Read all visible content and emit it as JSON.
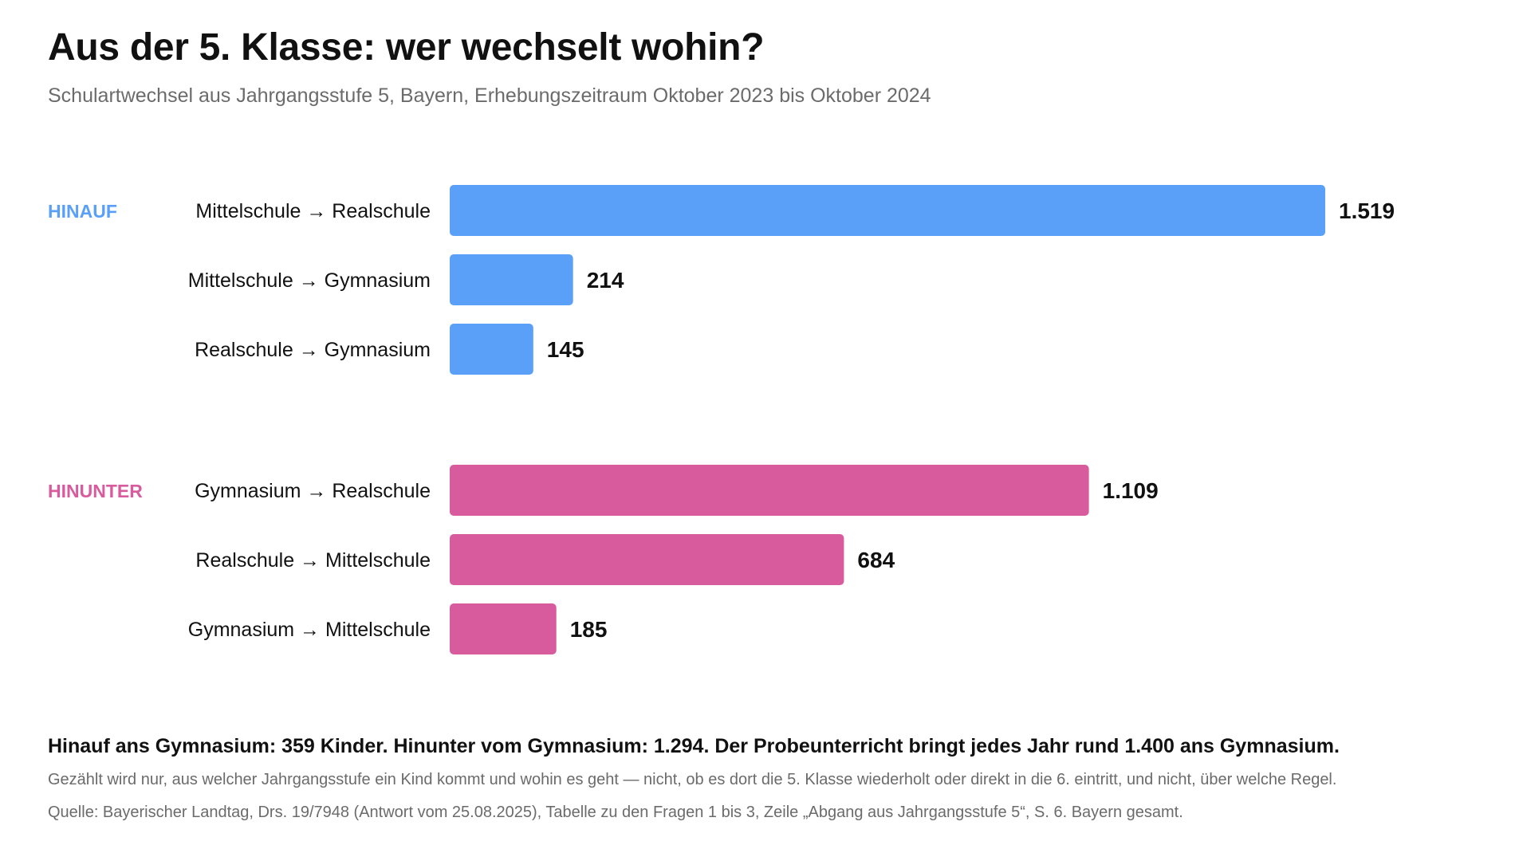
{
  "chart_data": {
    "type": "bar",
    "orientation": "horizontal",
    "title": "Aus der 5. Klasse: wer wechselt wohin?",
    "subtitle": "Schulartwechsel aus Jahrgangsstufe 5, Bayern, Erhebungszeitraum Oktober 2023 bis Oktober 2024",
    "xlim": [
      0,
      1519
    ],
    "grid": false,
    "groups": [
      {
        "name": "HINAUF",
        "color": "#5aa0f8",
        "categories": [
          "Mittelschule → Realschule",
          "Mittelschule → Gymnasium",
          "Realschule → Gymnasium"
        ],
        "values": [
          1519,
          214,
          145
        ],
        "value_labels": [
          "1.519",
          "214",
          "145"
        ]
      },
      {
        "name": "HINUNTER",
        "color": "#d85c9d",
        "categories": [
          "Gymnasium → Realschule",
          "Realschule → Mittelschule",
          "Gymnasium → Mittelschule"
        ],
        "values": [
          1109,
          684,
          185
        ],
        "value_labels": [
          "1.109",
          "684",
          "185"
        ]
      }
    ]
  },
  "footer": {
    "takeaway": "Hinauf ans Gymnasium: 359 Kinder. Hinunter vom Gymnasium: 1.294. Der Probeunterricht bringt jedes Jahr rund 1.400 ans Gymnasium.",
    "note": "Gezählt wird nur, aus welcher Jahrgangsstufe ein Kind kommt und wohin es geht — nicht, ob es dort die 5. Klasse wiederholt oder direkt in die 6. eintritt, und nicht, über welche Regel.",
    "source": "Quelle: Bayerischer Landtag, Drs. 19/7948 (Antwort vom 25.08.2025), Tabelle zu den Fragen 1 bis 3, Zeile „Abgang aus Jahrgangsstufe 5“, S. 6. Bayern gesamt."
  }
}
